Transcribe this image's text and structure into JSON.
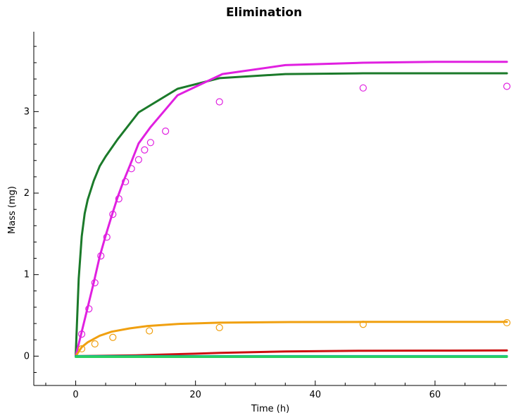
{
  "chart_data": {
    "type": "line",
    "title": "Elimination",
    "xlabel": "Time (h)",
    "ylabel": "Mass (mg)",
    "xlim": [
      -7,
      72
    ],
    "ylim": [
      -0.36,
      3.98
    ],
    "xticks": [
      0,
      20,
      40,
      60
    ],
    "yticks": [
      0,
      1,
      2,
      3
    ],
    "grid": false,
    "legend": "none",
    "series": [
      {
        "kind": "line",
        "color": "#1b7a2a",
        "x": [
          0,
          0.5,
          1,
          1.5,
          2,
          3,
          4,
          5,
          7,
          10.5,
          17,
          24,
          35,
          48,
          60,
          72
        ],
        "y": [
          0,
          0.95,
          1.47,
          1.75,
          1.92,
          2.15,
          2.33,
          2.45,
          2.66,
          2.99,
          3.28,
          3.41,
          3.46,
          3.47,
          3.47,
          3.47
        ]
      },
      {
        "kind": "line",
        "color": "#e020e0",
        "x": [
          0,
          1,
          2,
          3,
          4,
          5,
          6,
          7,
          8,
          9,
          10.5,
          12.5,
          17,
          24.5,
          35,
          48,
          60,
          72
        ],
        "y": [
          0,
          0.3,
          0.6,
          0.9,
          1.22,
          1.48,
          1.72,
          1.95,
          2.15,
          2.33,
          2.61,
          2.81,
          3.2,
          3.46,
          3.57,
          3.6,
          3.61,
          3.61
        ]
      },
      {
        "kind": "line",
        "color": "#f0a010",
        "x": [
          0,
          1,
          2,
          3,
          4,
          6,
          9,
          12,
          17,
          24,
          36,
          48,
          60,
          72
        ],
        "y": [
          0,
          0.11,
          0.17,
          0.21,
          0.25,
          0.3,
          0.34,
          0.37,
          0.395,
          0.41,
          0.418,
          0.42,
          0.42,
          0.42
        ]
      },
      {
        "kind": "line",
        "color": "#cc1010",
        "x": [
          0,
          10,
          20,
          24,
          35,
          48,
          60,
          72
        ],
        "y": [
          0,
          0.01,
          0.03,
          0.04,
          0.058,
          0.066,
          0.068,
          0.07
        ]
      },
      {
        "kind": "line",
        "color": "#10b890",
        "x": [
          0,
          72
        ],
        "y": [
          0,
          0
        ]
      },
      {
        "kind": "line",
        "color": "#2ad060",
        "x": [
          0,
          72
        ],
        "y": [
          -0.01,
          -0.01
        ]
      },
      {
        "kind": "scatter",
        "color": "#e020e0",
        "x": [
          1,
          2.2,
          3.2,
          4.2,
          5.2,
          6.2,
          7.2,
          8.3,
          9.3,
          10.5,
          11.5,
          12.5,
          15,
          24,
          48,
          72
        ],
        "y": [
          0.27,
          0.58,
          0.9,
          1.23,
          1.46,
          1.74,
          1.93,
          2.14,
          2.3,
          2.41,
          2.53,
          2.62,
          2.76,
          3.12,
          3.29,
          3.31
        ]
      },
      {
        "kind": "scatter",
        "color": "#f0a010",
        "x": [
          1,
          3.2,
          6.2,
          12.3,
          24,
          48,
          72
        ],
        "y": [
          0.09,
          0.15,
          0.23,
          0.31,
          0.35,
          0.39,
          0.41
        ]
      }
    ]
  }
}
